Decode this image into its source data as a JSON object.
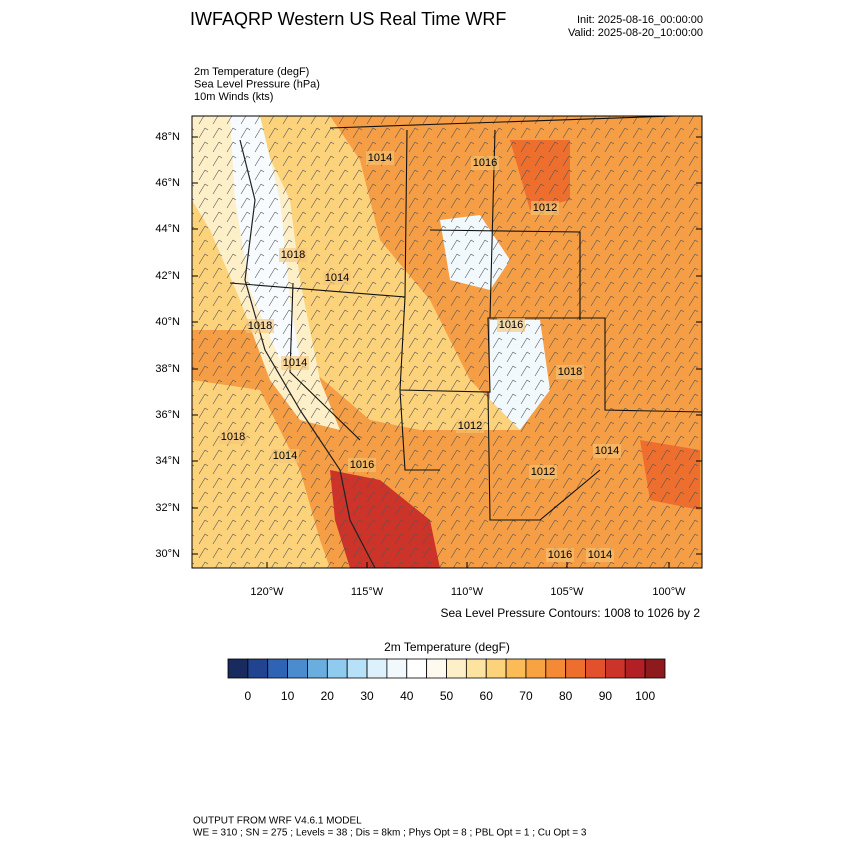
{
  "header": {
    "title": "IWFAQRP Western US Real Time WRF",
    "init": "Init: 2025-08-16_00:00:00",
    "valid": "Valid: 2025-08-20_10:00:00"
  },
  "fields": [
    "2m Temperature   (degF)",
    "Sea Level Pressure   (hPa)",
    "10m Winds   (kts)"
  ],
  "map": {
    "lat_labels": [
      "48°N",
      "46°N",
      "44°N",
      "42°N",
      "40°N",
      "38°N",
      "36°N",
      "34°N",
      "32°N",
      "30°N"
    ],
    "lon_labels": [
      "120°W",
      "115°W",
      "110°W",
      "105°W",
      "100°W"
    ],
    "contour_labels": [
      "1014",
      "1016",
      "1012",
      "1018",
      "1014",
      "1018",
      "1016",
      "1014",
      "1018",
      "1018",
      "1014",
      "1016",
      "1012",
      "1014",
      "1012",
      "1016",
      "1014"
    ]
  },
  "contour_note": "Sea Level Pressure Contours: 1008 to 1026 by 2",
  "colorbar": {
    "title": "2m Temperature  (degF)",
    "lim": [
      -5,
      105
    ],
    "ticks": [
      0,
      10,
      20,
      30,
      40,
      50,
      60,
      70,
      80,
      90,
      100
    ],
    "colors": [
      "#182a5e",
      "#22438f",
      "#2f64b5",
      "#4a8ccd",
      "#6aaee0",
      "#8fcbef",
      "#b7e1f6",
      "#dcf1fb",
      "#f2f9fd",
      "#ffffff",
      "#fffaf0",
      "#fdefc8",
      "#fde3a0",
      "#fcd27a",
      "#fbbb57",
      "#f8a342",
      "#f48a35",
      "#ee6e2e",
      "#e2512c",
      "#cc3329",
      "#b21f24",
      "#8e1a1e"
    ]
  },
  "footer": {
    "line1": "OUTPUT FROM WRF V4.6.1 MODEL",
    "line2": "WE = 310 ; SN = 275 ; Levels = 38 ; Dis = 8km ; Phys Opt = 8 ; PBL Opt = 1 ; Cu Opt = 3"
  }
}
